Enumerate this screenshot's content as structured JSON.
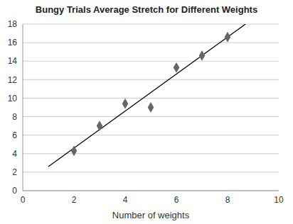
{
  "chart_data": {
    "type": "scatter",
    "title": "Bungy Trials Average Stretch for Different Weights",
    "x_label": "Number of weights",
    "x": [
      2,
      3,
      4,
      5,
      6,
      7,
      8
    ],
    "values": [
      4.3,
      7,
      9.4,
      9,
      13.3,
      14.6,
      16.6
    ],
    "color": "#666666",
    "marker": "diamond",
    "trend_line": {
      "x": [
        1,
        8.7
      ],
      "values": [
        2.6,
        18
      ],
      "color": "#000000"
    },
    "xlim": [
      0,
      10
    ],
    "xticks": [
      0,
      2,
      4,
      6,
      8,
      10
    ],
    "ylim": [
      0,
      18
    ],
    "yticks": [
      0,
      2,
      4,
      6,
      8,
      10,
      12,
      14,
      16,
      18
    ],
    "grid": true
  }
}
